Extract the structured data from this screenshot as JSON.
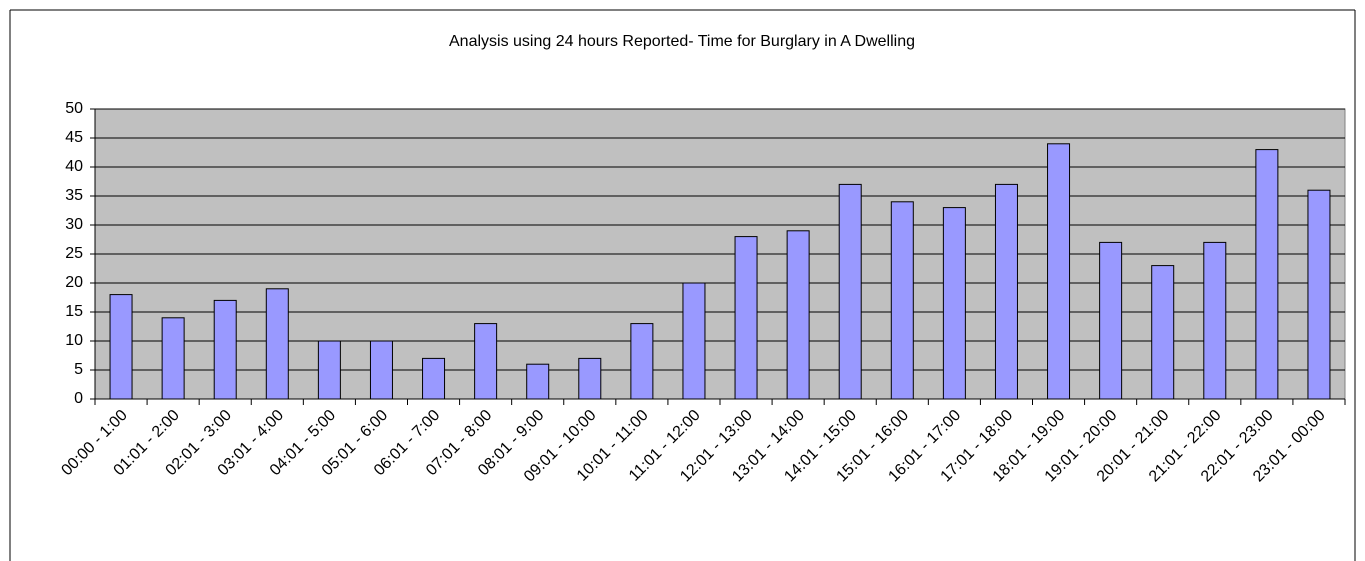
{
  "chart_data": {
    "type": "bar",
    "title": "Analysis using 24 hours Reported- Time for Burglary in A Dwelling",
    "categories": [
      "00:00 - 1:00",
      "01:01 - 2:00",
      "02:01 - 3:00",
      "03:01 - 4:00",
      "04:01 - 5:00",
      "05:01 - 6:00",
      "06:01 - 7:00",
      "07:01 - 8:00",
      "08:01 - 9:00",
      "09:01 - 10:00",
      "10:01 - 11:00",
      "11:01 - 12:00",
      "12:01 - 13:00",
      "13:01 - 14:00",
      "14:01 - 15:00",
      "15:01 - 16:00",
      "16:01 - 17:00",
      "17:01 - 18:00",
      "18:01 - 19:00",
      "19:01 - 20:00",
      "20:01 - 21:00",
      "21:01 - 22:00",
      "22:01 - 23:00",
      "23:01 - 00:00"
    ],
    "values": [
      18,
      14,
      17,
      19,
      10,
      10,
      7,
      13,
      6,
      7,
      13,
      20,
      28,
      29,
      37,
      34,
      33,
      37,
      44,
      27,
      23,
      27,
      43,
      36
    ],
    "color": "#9999ff",
    "ylim": [
      0,
      50
    ],
    "yticks": [
      0,
      5,
      10,
      15,
      20,
      25,
      30,
      35,
      40,
      45,
      50
    ],
    "grid": true
  }
}
